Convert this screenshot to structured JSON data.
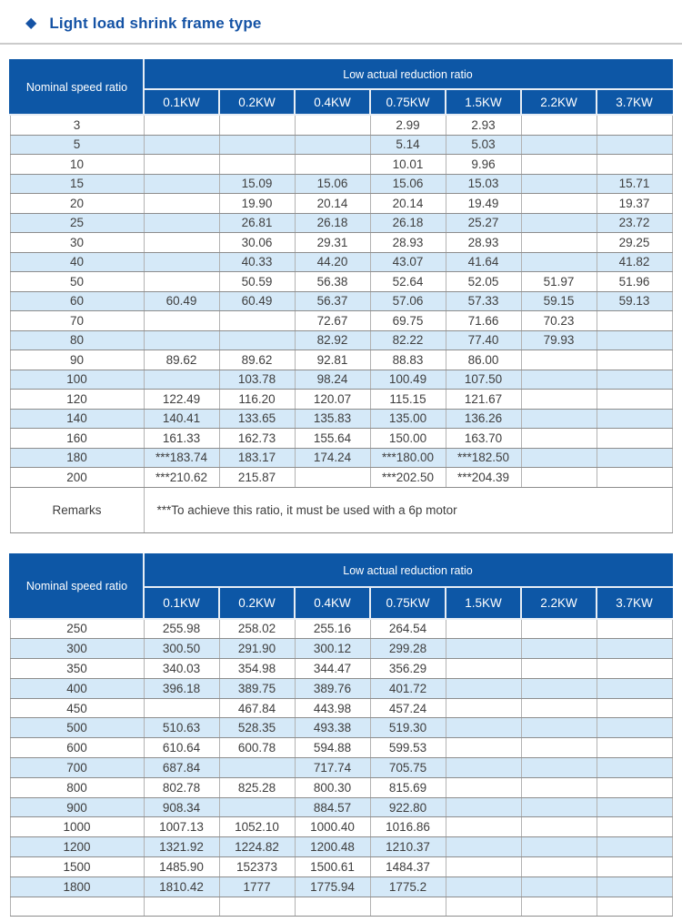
{
  "page": {
    "title": "Light load shrink frame type",
    "title_bullet": "diamond-icon"
  },
  "colors": {
    "accent": "#1553a5",
    "header_bg": "#0d57a6",
    "row_alt_bg": "#d5e9f8",
    "divider": "#cbcbcb"
  },
  "tables": [
    {
      "corner_label": "Nominal speed ratio",
      "group_label": "Low actual reduction ratio",
      "columns": [
        "0.1KW",
        "0.2KW",
        "0.4KW",
        "0.75KW",
        "1.5KW",
        "2.2KW",
        "3.7KW"
      ],
      "rows": [
        {
          "ratio": "3",
          "values": [
            "",
            "",
            "",
            "2.99",
            "2.93",
            "",
            ""
          ]
        },
        {
          "ratio": "5",
          "values": [
            "",
            "",
            "",
            "5.14",
            "5.03",
            "",
            ""
          ]
        },
        {
          "ratio": "10",
          "values": [
            "",
            "",
            "",
            "10.01",
            "9.96",
            "",
            ""
          ]
        },
        {
          "ratio": "15",
          "values": [
            "",
            "15.09",
            "15.06",
            "15.06",
            "15.03",
            "",
            "15.71"
          ]
        },
        {
          "ratio": "20",
          "values": [
            "",
            "19.90",
            "20.14",
            "20.14",
            "19.49",
            "",
            "19.37"
          ]
        },
        {
          "ratio": "25",
          "values": [
            "",
            "26.81",
            "26.18",
            "26.18",
            "25.27",
            "",
            "23.72"
          ]
        },
        {
          "ratio": "30",
          "values": [
            "",
            "30.06",
            "29.31",
            "28.93",
            "28.93",
            "",
            "29.25"
          ]
        },
        {
          "ratio": "40",
          "values": [
            "",
            "40.33",
            "44.20",
            "43.07",
            "41.64",
            "",
            "41.82"
          ]
        },
        {
          "ratio": "50",
          "values": [
            "",
            "50.59",
            "56.38",
            "52.64",
            "52.05",
            "51.97",
            "51.96"
          ]
        },
        {
          "ratio": "60",
          "values": [
            "60.49",
            "60.49",
            "56.37",
            "57.06",
            "57.33",
            "59.15",
            "59.13"
          ]
        },
        {
          "ratio": "70",
          "values": [
            "",
            "",
            "72.67",
            "69.75",
            "71.66",
            "70.23",
            ""
          ]
        },
        {
          "ratio": "80",
          "values": [
            "",
            "",
            "82.92",
            "82.22",
            "77.40",
            "79.93",
            ""
          ]
        },
        {
          "ratio": "90",
          "values": [
            "89.62",
            "89.62",
            "92.81",
            "88.83",
            "86.00",
            "",
            ""
          ]
        },
        {
          "ratio": "100",
          "values": [
            "",
            "103.78",
            "98.24",
            "100.49",
            "107.50",
            "",
            ""
          ]
        },
        {
          "ratio": "120",
          "values": [
            "122.49",
            "116.20",
            "120.07",
            "115.15",
            "121.67",
            "",
            ""
          ]
        },
        {
          "ratio": "140",
          "values": [
            "140.41",
            "133.65",
            "135.83",
            "135.00",
            "136.26",
            "",
            ""
          ]
        },
        {
          "ratio": "160",
          "values": [
            "161.33",
            "162.73",
            "155.64",
            "150.00",
            "163.70",
            "",
            ""
          ]
        },
        {
          "ratio": "180",
          "values": [
            "***183.74",
            "183.17",
            "174.24",
            "***180.00",
            "***182.50",
            "",
            ""
          ]
        },
        {
          "ratio": "200",
          "values": [
            "***210.62",
            "215.87",
            "",
            "***202.50",
            "***204.39",
            "",
            ""
          ]
        }
      ],
      "remarks_label": "Remarks",
      "remarks_text": "***To achieve this ratio, it must be used with a 6p motor"
    },
    {
      "corner_label": "Nominal speed ratio",
      "group_label": "Low actual reduction ratio",
      "columns": [
        "0.1KW",
        "0.2KW",
        "0.4KW",
        "0.75KW",
        "1.5KW",
        "2.2KW",
        "3.7KW"
      ],
      "rows": [
        {
          "ratio": "250",
          "values": [
            "255.98",
            "258.02",
            "255.16",
            "264.54",
            "",
            "",
            ""
          ]
        },
        {
          "ratio": "300",
          "values": [
            "300.50",
            "291.90",
            "300.12",
            "299.28",
            "",
            "",
            ""
          ]
        },
        {
          "ratio": "350",
          "values": [
            "340.03",
            "354.98",
            "344.47",
            "356.29",
            "",
            "",
            ""
          ]
        },
        {
          "ratio": "400",
          "values": [
            "396.18",
            "389.75",
            "389.76",
            "401.72",
            "",
            "",
            ""
          ]
        },
        {
          "ratio": "450",
          "values": [
            "",
            "467.84",
            "443.98",
            "457.24",
            "",
            "",
            ""
          ]
        },
        {
          "ratio": "500",
          "values": [
            "510.63",
            "528.35",
            "493.38",
            "519.30",
            "",
            "",
            ""
          ]
        },
        {
          "ratio": "600",
          "values": [
            "610.64",
            "600.78",
            "594.88",
            "599.53",
            "",
            "",
            ""
          ]
        },
        {
          "ratio": "700",
          "values": [
            "687.84",
            "",
            "717.74",
            "705.75",
            "",
            "",
            ""
          ]
        },
        {
          "ratio": "800",
          "values": [
            "802.78",
            "825.28",
            "800.30",
            "815.69",
            "",
            "",
            ""
          ]
        },
        {
          "ratio": "900",
          "values": [
            "908.34",
            "",
            "884.57",
            "922.80",
            "",
            "",
            ""
          ]
        },
        {
          "ratio": "1000",
          "values": [
            "1007.13",
            "1052.10",
            "1000.40",
            "1016.86",
            "",
            "",
            ""
          ]
        },
        {
          "ratio": "1200",
          "values": [
            "1321.92",
            "1224.82",
            "1200.48",
            "1210.37",
            "",
            "",
            ""
          ]
        },
        {
          "ratio": "1500",
          "values": [
            "1485.90",
            "152373",
            "1500.61",
            "1484.37",
            "",
            "",
            ""
          ]
        },
        {
          "ratio": "1800",
          "values": [
            "1810.42",
            "1777",
            "1775.94",
            "1775.2",
            "",
            "",
            ""
          ]
        },
        {
          "ratio": "",
          "values": [
            "",
            "",
            "",
            "",
            "",
            "",
            ""
          ]
        }
      ]
    }
  ]
}
